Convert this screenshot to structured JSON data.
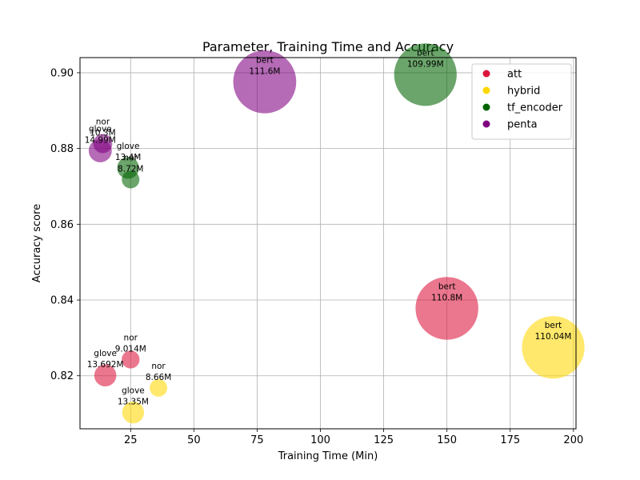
{
  "chart_data": {
    "type": "scatter",
    "title": "Parameter, Training Time and Accuracy",
    "xlabel": "Training Time (Min)",
    "ylabel": "Accuracy score",
    "xlim": [
      5,
      201
    ],
    "ylim": [
      0.806,
      0.904
    ],
    "xticks": [
      "25",
      "50",
      "75",
      "100",
      "125",
      "150",
      "175",
      "200"
    ],
    "xtick_values": [
      25,
      50,
      75,
      100,
      125,
      150,
      175,
      200
    ],
    "yticks": [
      "0.82",
      "0.84",
      "0.86",
      "0.88",
      "0.90"
    ],
    "ytick_values": [
      0.82,
      0.84,
      0.86,
      0.88,
      0.9
    ],
    "grid": true,
    "legend_position": "top-right",
    "legend": [
      {
        "label": "att",
        "color": "#dc143c"
      },
      {
        "label": "hybrid",
        "color": "#ffd700"
      },
      {
        "label": "tf_encoder",
        "color": "#006400"
      },
      {
        "label": "penta",
        "color": "#800080"
      }
    ],
    "points": [
      {
        "group": "att",
        "model": "bert",
        "params_label": "110.8M",
        "params": 110.8,
        "x": 150,
        "y": 0.8378
      },
      {
        "group": "att",
        "model": "nor",
        "params_label": "9.014M",
        "params": 9.014,
        "x": 25,
        "y": 0.8243
      },
      {
        "group": "att",
        "model": "glove",
        "params_label": "13.692M",
        "params": 13.692,
        "x": 15,
        "y": 0.8201
      },
      {
        "group": "hybrid",
        "model": "bert",
        "params_label": "110.04M",
        "params": 110.04,
        "x": 192,
        "y": 0.8275
      },
      {
        "group": "hybrid",
        "model": "nor",
        "params_label": "8.66M",
        "params": 8.66,
        "x": 36,
        "y": 0.8168
      },
      {
        "group": "hybrid",
        "model": "glove",
        "params_label": "13.35M",
        "params": 13.35,
        "x": 26,
        "y": 0.8103
      },
      {
        "group": "tf_encoder",
        "model": "bert",
        "params_label": "109.99M",
        "params": 109.99,
        "x": 141.5,
        "y": 0.8995
      },
      {
        "group": "tf_encoder",
        "model": "glove",
        "params_label": "13.4M",
        "params": 13.4,
        "x": 24,
        "y": 0.8749
      },
      {
        "group": "tf_encoder",
        "model": "nor",
        "params_label": "8.72M",
        "params": 8.72,
        "x": 25,
        "y": 0.8718
      },
      {
        "group": "penta",
        "model": "bert",
        "params_label": "111.6M",
        "params": 111.6,
        "x": 78,
        "y": 0.8976
      },
      {
        "group": "penta",
        "model": "nor",
        "params_label": "10.3M",
        "params": 10.3,
        "x": 14,
        "y": 0.8813
      },
      {
        "group": "penta",
        "model": "glove",
        "params_label": "14.99M",
        "params": 14.99,
        "x": 13,
        "y": 0.8794
      }
    ]
  }
}
